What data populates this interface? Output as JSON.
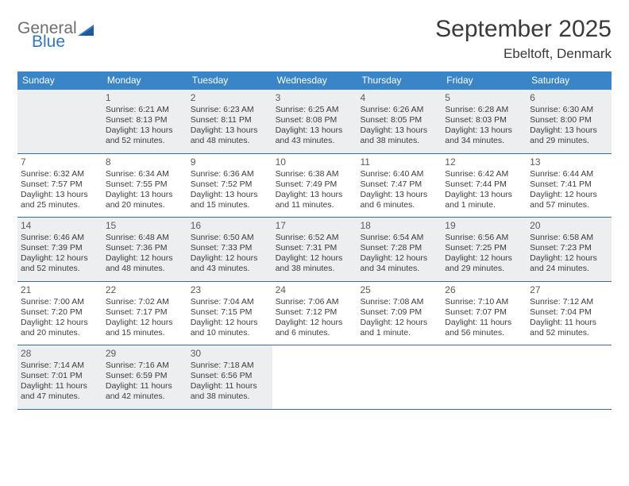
{
  "logo": {
    "general": "General",
    "blue": "Blue"
  },
  "title": "September 2025",
  "location": "Ebeltoft, Denmark",
  "colors": {
    "header_bg": "#3a85c8",
    "header_text": "#ffffff",
    "shade_bg": "#eceef0",
    "border": "#2f6ea8",
    "text": "#3a3a3a",
    "logo_gray": "#6e6e6e",
    "logo_blue": "#2f78bf"
  },
  "dow": [
    "Sunday",
    "Monday",
    "Tuesday",
    "Wednesday",
    "Thursday",
    "Friday",
    "Saturday"
  ],
  "weeks": [
    [
      {
        "n": "",
        "l1": "",
        "l2": "",
        "l3": "",
        "l4": "",
        "shade": true
      },
      {
        "n": "1",
        "l1": "Sunrise: 6:21 AM",
        "l2": "Sunset: 8:13 PM",
        "l3": "Daylight: 13 hours",
        "l4": "and 52 minutes.",
        "shade": true
      },
      {
        "n": "2",
        "l1": "Sunrise: 6:23 AM",
        "l2": "Sunset: 8:11 PM",
        "l3": "Daylight: 13 hours",
        "l4": "and 48 minutes.",
        "shade": true
      },
      {
        "n": "3",
        "l1": "Sunrise: 6:25 AM",
        "l2": "Sunset: 8:08 PM",
        "l3": "Daylight: 13 hours",
        "l4": "and 43 minutes.",
        "shade": true
      },
      {
        "n": "4",
        "l1": "Sunrise: 6:26 AM",
        "l2": "Sunset: 8:05 PM",
        "l3": "Daylight: 13 hours",
        "l4": "and 38 minutes.",
        "shade": true
      },
      {
        "n": "5",
        "l1": "Sunrise: 6:28 AM",
        "l2": "Sunset: 8:03 PM",
        "l3": "Daylight: 13 hours",
        "l4": "and 34 minutes.",
        "shade": true
      },
      {
        "n": "6",
        "l1": "Sunrise: 6:30 AM",
        "l2": "Sunset: 8:00 PM",
        "l3": "Daylight: 13 hours",
        "l4": "and 29 minutes.",
        "shade": true
      }
    ],
    [
      {
        "n": "7",
        "l1": "Sunrise: 6:32 AM",
        "l2": "Sunset: 7:57 PM",
        "l3": "Daylight: 13 hours",
        "l4": "and 25 minutes."
      },
      {
        "n": "8",
        "l1": "Sunrise: 6:34 AM",
        "l2": "Sunset: 7:55 PM",
        "l3": "Daylight: 13 hours",
        "l4": "and 20 minutes."
      },
      {
        "n": "9",
        "l1": "Sunrise: 6:36 AM",
        "l2": "Sunset: 7:52 PM",
        "l3": "Daylight: 13 hours",
        "l4": "and 15 minutes."
      },
      {
        "n": "10",
        "l1": "Sunrise: 6:38 AM",
        "l2": "Sunset: 7:49 PM",
        "l3": "Daylight: 13 hours",
        "l4": "and 11 minutes."
      },
      {
        "n": "11",
        "l1": "Sunrise: 6:40 AM",
        "l2": "Sunset: 7:47 PM",
        "l3": "Daylight: 13 hours",
        "l4": "and 6 minutes."
      },
      {
        "n": "12",
        "l1": "Sunrise: 6:42 AM",
        "l2": "Sunset: 7:44 PM",
        "l3": "Daylight: 13 hours",
        "l4": "and 1 minute."
      },
      {
        "n": "13",
        "l1": "Sunrise: 6:44 AM",
        "l2": "Sunset: 7:41 PM",
        "l3": "Daylight: 12 hours",
        "l4": "and 57 minutes."
      }
    ],
    [
      {
        "n": "14",
        "l1": "Sunrise: 6:46 AM",
        "l2": "Sunset: 7:39 PM",
        "l3": "Daylight: 12 hours",
        "l4": "and 52 minutes.",
        "shade": true
      },
      {
        "n": "15",
        "l1": "Sunrise: 6:48 AM",
        "l2": "Sunset: 7:36 PM",
        "l3": "Daylight: 12 hours",
        "l4": "and 48 minutes.",
        "shade": true
      },
      {
        "n": "16",
        "l1": "Sunrise: 6:50 AM",
        "l2": "Sunset: 7:33 PM",
        "l3": "Daylight: 12 hours",
        "l4": "and 43 minutes.",
        "shade": true
      },
      {
        "n": "17",
        "l1": "Sunrise: 6:52 AM",
        "l2": "Sunset: 7:31 PM",
        "l3": "Daylight: 12 hours",
        "l4": "and 38 minutes.",
        "shade": true
      },
      {
        "n": "18",
        "l1": "Sunrise: 6:54 AM",
        "l2": "Sunset: 7:28 PM",
        "l3": "Daylight: 12 hours",
        "l4": "and 34 minutes.",
        "shade": true
      },
      {
        "n": "19",
        "l1": "Sunrise: 6:56 AM",
        "l2": "Sunset: 7:25 PM",
        "l3": "Daylight: 12 hours",
        "l4": "and 29 minutes.",
        "shade": true
      },
      {
        "n": "20",
        "l1": "Sunrise: 6:58 AM",
        "l2": "Sunset: 7:23 PM",
        "l3": "Daylight: 12 hours",
        "l4": "and 24 minutes.",
        "shade": true
      }
    ],
    [
      {
        "n": "21",
        "l1": "Sunrise: 7:00 AM",
        "l2": "Sunset: 7:20 PM",
        "l3": "Daylight: 12 hours",
        "l4": "and 20 minutes."
      },
      {
        "n": "22",
        "l1": "Sunrise: 7:02 AM",
        "l2": "Sunset: 7:17 PM",
        "l3": "Daylight: 12 hours",
        "l4": "and 15 minutes."
      },
      {
        "n": "23",
        "l1": "Sunrise: 7:04 AM",
        "l2": "Sunset: 7:15 PM",
        "l3": "Daylight: 12 hours",
        "l4": "and 10 minutes."
      },
      {
        "n": "24",
        "l1": "Sunrise: 7:06 AM",
        "l2": "Sunset: 7:12 PM",
        "l3": "Daylight: 12 hours",
        "l4": "and 6 minutes."
      },
      {
        "n": "25",
        "l1": "Sunrise: 7:08 AM",
        "l2": "Sunset: 7:09 PM",
        "l3": "Daylight: 12 hours",
        "l4": "and 1 minute."
      },
      {
        "n": "26",
        "l1": "Sunrise: 7:10 AM",
        "l2": "Sunset: 7:07 PM",
        "l3": "Daylight: 11 hours",
        "l4": "and 56 minutes."
      },
      {
        "n": "27",
        "l1": "Sunrise: 7:12 AM",
        "l2": "Sunset: 7:04 PM",
        "l3": "Daylight: 11 hours",
        "l4": "and 52 minutes."
      }
    ],
    [
      {
        "n": "28",
        "l1": "Sunrise: 7:14 AM",
        "l2": "Sunset: 7:01 PM",
        "l3": "Daylight: 11 hours",
        "l4": "and 47 minutes.",
        "shade": true
      },
      {
        "n": "29",
        "l1": "Sunrise: 7:16 AM",
        "l2": "Sunset: 6:59 PM",
        "l3": "Daylight: 11 hours",
        "l4": "and 42 minutes.",
        "shade": true
      },
      {
        "n": "30",
        "l1": "Sunrise: 7:18 AM",
        "l2": "Sunset: 6:56 PM",
        "l3": "Daylight: 11 hours",
        "l4": "and 38 minutes.",
        "shade": true
      },
      {
        "n": "",
        "l1": "",
        "l2": "",
        "l3": "",
        "l4": ""
      },
      {
        "n": "",
        "l1": "",
        "l2": "",
        "l3": "",
        "l4": ""
      },
      {
        "n": "",
        "l1": "",
        "l2": "",
        "l3": "",
        "l4": ""
      },
      {
        "n": "",
        "l1": "",
        "l2": "",
        "l3": "",
        "l4": ""
      }
    ]
  ]
}
